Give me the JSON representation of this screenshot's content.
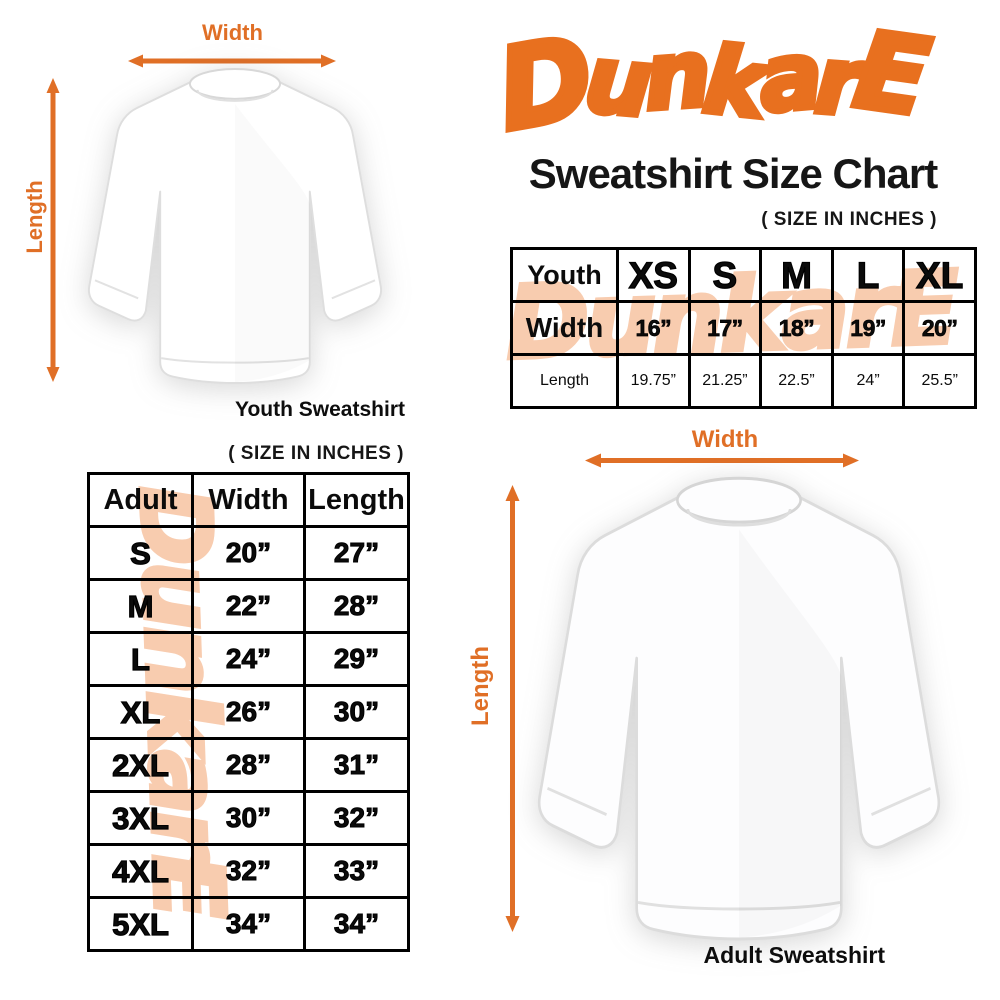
{
  "brand": {
    "logo_text": "DunkarE"
  },
  "header": {
    "title": "Sweatshirt Size Chart",
    "size_note": "( SIZE IN INCHES )"
  },
  "watermark_text": "DunkarE",
  "youth_diagram": {
    "width_label": "Width",
    "length_label": "Length",
    "caption": "Youth Sweatshirt"
  },
  "adult_diagram": {
    "width_label": "Width",
    "length_label": "Length",
    "caption": "Adult Sweatshirt"
  },
  "youth_table": {
    "header": [
      "Youth",
      "XS",
      "S",
      "M",
      "L",
      "XL"
    ],
    "rows": [
      [
        "Width",
        "16”",
        "17”",
        "18”",
        "19”",
        "20”"
      ],
      [
        "Length",
        "19.75”",
        "21.25”",
        "22.5”",
        "24”",
        "25.5”"
      ]
    ]
  },
  "adult_table": {
    "size_note": "( SIZE IN INCHES )",
    "header": [
      "Adult",
      "Width",
      "Length"
    ],
    "rows": [
      [
        "S",
        "20”",
        "27”"
      ],
      [
        "M",
        "22”",
        "28”"
      ],
      [
        "L",
        "24”",
        "29”"
      ],
      [
        "XL",
        "26”",
        "30”"
      ],
      [
        "2XL",
        "28”",
        "31”"
      ],
      [
        "3XL",
        "30”",
        "32”"
      ],
      [
        "4XL",
        "32”",
        "33”"
      ],
      [
        "5XL",
        "34”",
        "34”"
      ]
    ]
  },
  "colors": {
    "accent_orange": "#E8701F",
    "arrow_orange": "#E06F26",
    "watermark_peach": "#F8CCAF",
    "table_border": "#000000",
    "text_black": "#111111"
  },
  "icons": {
    "width_arrow": "horizontal-double-arrow-icon",
    "length_arrow": "vertical-double-arrow-icon"
  },
  "chart_data": [
    {
      "type": "table",
      "title": "Youth Sweatshirt Size Chart (inches)",
      "columns": [
        "Size",
        "XS",
        "S",
        "M",
        "L",
        "XL"
      ],
      "rows": [
        [
          "Width",
          16,
          17,
          18,
          19,
          20
        ],
        [
          "Length",
          19.75,
          21.25,
          22.5,
          24,
          25.5
        ]
      ]
    },
    {
      "type": "table",
      "title": "Adult Sweatshirt Size Chart (inches)",
      "columns": [
        "Size",
        "Width",
        "Length"
      ],
      "rows": [
        [
          "S",
          20,
          27
        ],
        [
          "M",
          22,
          28
        ],
        [
          "L",
          24,
          29
        ],
        [
          "XL",
          26,
          30
        ],
        [
          "2XL",
          28,
          31
        ],
        [
          "3XL",
          30,
          32
        ],
        [
          "4XL",
          32,
          33
        ],
        [
          "5XL",
          34,
          34
        ]
      ]
    }
  ]
}
